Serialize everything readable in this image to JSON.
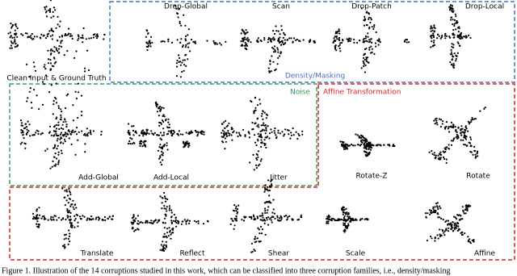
{
  "clean": {
    "label": "Clean Input & Ground Truth"
  },
  "density": {
    "title": "Density/Masking",
    "items": [
      "Drop-Global",
      "Scan",
      "Drop-Patch",
      "Drop-Local"
    ]
  },
  "noise": {
    "title": "Noise",
    "items": [
      "Add-Global",
      "Add-Local",
      "Jitter"
    ]
  },
  "affine": {
    "title": "Affine Transformation",
    "items": [
      "Rotate-Z",
      "Rotate",
      "Translate",
      "Reflect",
      "Shear",
      "Scale",
      "Affine"
    ]
  },
  "caption": "Figure 1. Illustration of the 14 corruptions studied in this work, which can be classified into three corruption families, i.e., density/masking"
}
